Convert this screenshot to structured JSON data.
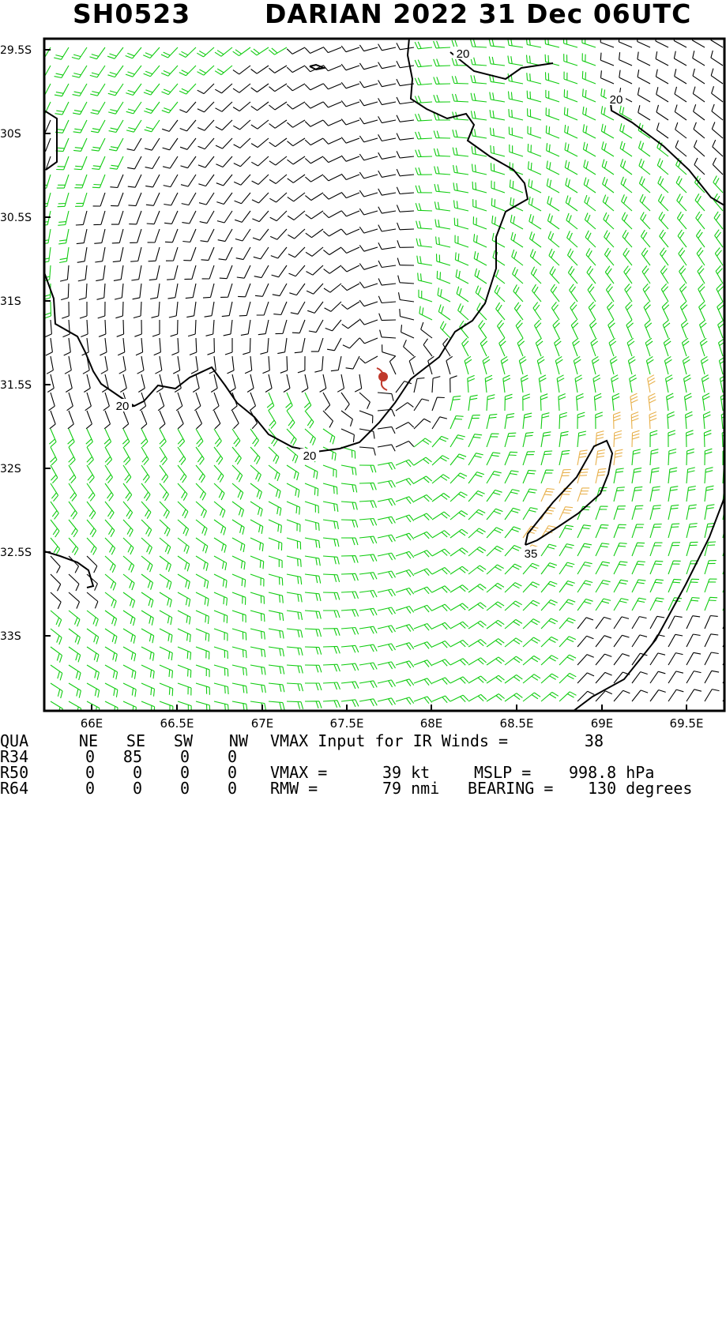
{
  "header": {
    "storm_id": "SH0523",
    "storm_title": "DARIAN 2022 31 Dec 06UTC"
  },
  "axes": {
    "lat_labels": [
      "29.5S",
      "30S",
      "30.5S",
      "31S",
      "31.5S",
      "32S",
      "32.5S",
      "33S"
    ],
    "lon_labels": [
      "66E",
      "66.5E",
      "67E",
      "67.5E",
      "68E",
      "68.5E",
      "69E",
      "69.5E"
    ]
  },
  "map": {
    "center": {
      "lat": -31.45,
      "lon": 67.73
    },
    "contour_labels": [
      "20",
      "20",
      "20",
      "20",
      "35"
    ],
    "colors": {
      "below_34kt": "#000000",
      "34_to_49kt": "#11cc11",
      "50kt_plus": "#e8b04a",
      "storm_symbol": "#c0392b"
    }
  },
  "table": {
    "headers": [
      "QUA",
      "NE",
      "SE",
      "SW",
      "NW"
    ],
    "rows": [
      {
        "label": "R34",
        "values": [
          "0",
          "85",
          "0",
          "0"
        ]
      },
      {
        "label": "R50",
        "values": [
          "0",
          "0",
          "0",
          "0"
        ]
      },
      {
        "label": "R64",
        "values": [
          "0",
          "0",
          "0",
          "0"
        ]
      }
    ]
  },
  "stats": {
    "vmax_input_label": "VMAX Input for IR Winds =",
    "vmax_input_value": "38",
    "vmax_label": "VMAX =",
    "vmax_value": "39 kt",
    "mslp_label": "MSLP =",
    "mslp_value": "998.8 hPa",
    "rmw_label": "RMW =",
    "rmw_value": "79 nmi",
    "bearing_label": "BEARING =",
    "bearing_value": "130 degrees"
  }
}
